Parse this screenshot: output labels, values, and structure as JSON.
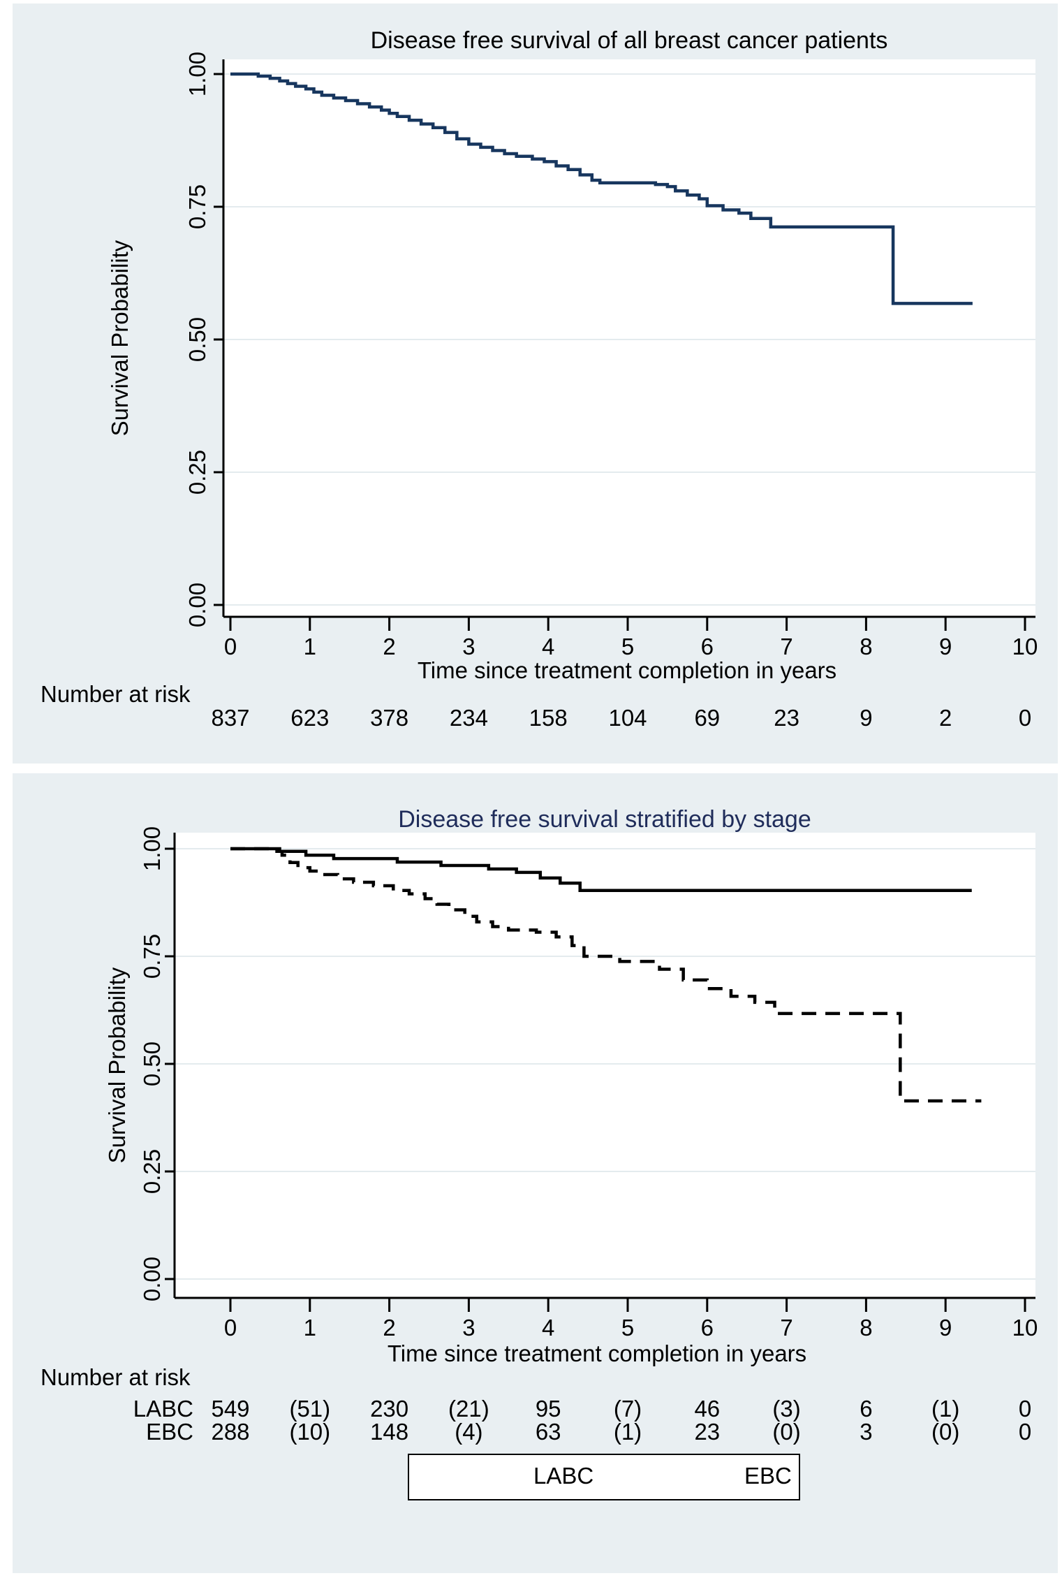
{
  "figure": {
    "background": "#ffffff",
    "panel_background": "#e9eff2",
    "plot_background": "#ffffff",
    "grid_color": "#e4ebee",
    "axis_color": "#000000",
    "navy_line_color": "#17365e",
    "black_line_color": "#000000"
  },
  "chart_data": [
    {
      "type": "line",
      "subtype": "kaplan-meier-step-curve",
      "title": "Disease free survival of all breast cancer patients",
      "title_color": "#1c1c1c",
      "xlabel": "Time since treatment completion in years",
      "ylabel": "Survival Probability",
      "xlim": [
        0,
        10
      ],
      "ylim": [
        0.0,
        1.0
      ],
      "x_ticks": [
        "0",
        "1",
        "2",
        "3",
        "4",
        "5",
        "6",
        "7",
        "8",
        "9",
        "10"
      ],
      "y_ticks": [
        "1.00",
        "0.75",
        "0.50",
        "0.25",
        "0.00"
      ],
      "grid": true,
      "series": [
        {
          "name": "All breast cancer patients",
          "style": "solid",
          "color": "#17365e",
          "end_time": 9.34,
          "steps": [
            [
              0,
              1.0
            ],
            [
              0.35,
              0.996
            ],
            [
              0.5,
              0.992
            ],
            [
              0.62,
              0.987
            ],
            [
              0.72,
              0.982
            ],
            [
              0.82,
              0.977
            ],
            [
              0.95,
              0.972
            ],
            [
              1.05,
              0.966
            ],
            [
              1.15,
              0.96
            ],
            [
              1.3,
              0.955
            ],
            [
              1.45,
              0.95
            ],
            [
              1.6,
              0.944
            ],
            [
              1.75,
              0.938
            ],
            [
              1.9,
              0.932
            ],
            [
              2.0,
              0.926
            ],
            [
              2.1,
              0.92
            ],
            [
              2.25,
              0.913
            ],
            [
              2.4,
              0.906
            ],
            [
              2.55,
              0.899
            ],
            [
              2.7,
              0.89
            ],
            [
              2.85,
              0.878
            ],
            [
              3.0,
              0.868
            ],
            [
              3.15,
              0.862
            ],
            [
              3.3,
              0.856
            ],
            [
              3.45,
              0.85
            ],
            [
              3.6,
              0.845
            ],
            [
              3.8,
              0.84
            ],
            [
              3.95,
              0.835
            ],
            [
              4.1,
              0.827
            ],
            [
              4.25,
              0.82
            ],
            [
              4.4,
              0.81
            ],
            [
              4.55,
              0.8
            ],
            [
              4.65,
              0.795
            ],
            [
              5.35,
              0.792
            ],
            [
              5.5,
              0.788
            ],
            [
              5.6,
              0.78
            ],
            [
              5.75,
              0.772
            ],
            [
              5.9,
              0.765
            ],
            [
              6.0,
              0.752
            ],
            [
              6.2,
              0.744
            ],
            [
              6.4,
              0.738
            ],
            [
              6.55,
              0.728
            ],
            [
              6.8,
              0.712
            ],
            [
              8.34,
              0.568
            ]
          ]
        }
      ],
      "number_at_risk": {
        "label": "Number at risk",
        "rows": [
          {
            "name": "",
            "values": [
              "837",
              "623",
              "378",
              "234",
              "158",
              "104",
              "69",
              "23",
              "9",
              "2",
              "0"
            ]
          }
        ]
      }
    },
    {
      "type": "line",
      "subtype": "kaplan-meier-step-curve",
      "title": "Disease free survival stratified by stage",
      "title_color": "#1f2c5a",
      "xlabel": "Time since treatment completion in years",
      "ylabel": "Survival Probability",
      "xlim": [
        0,
        10
      ],
      "ylim": [
        0.0,
        1.0
      ],
      "x_ticks": [
        "0",
        "1",
        "2",
        "3",
        "4",
        "5",
        "6",
        "7",
        "8",
        "9",
        "10"
      ],
      "y_ticks": [
        "1.00",
        "0.75",
        "0.50",
        "0.25",
        "0.00"
      ],
      "grid": true,
      "series": [
        {
          "name": "LABC",
          "style": "dashed",
          "color": "#000000",
          "end_time": 9.45,
          "steps": [
            [
              0,
              1.0
            ],
            [
              0.5,
              0.994
            ],
            [
              0.65,
              0.985
            ],
            [
              0.75,
              0.968
            ],
            [
              0.85,
              0.956
            ],
            [
              1.0,
              0.948
            ],
            [
              1.15,
              0.94
            ],
            [
              1.35,
              0.93
            ],
            [
              1.55,
              0.922
            ],
            [
              1.8,
              0.914
            ],
            [
              2.05,
              0.903
            ],
            [
              2.25,
              0.895
            ],
            [
              2.45,
              0.884
            ],
            [
              2.6,
              0.871
            ],
            [
              2.75,
              0.858
            ],
            [
              2.95,
              0.843
            ],
            [
              3.1,
              0.83
            ],
            [
              3.3,
              0.819
            ],
            [
              3.5,
              0.811
            ],
            [
              3.85,
              0.806
            ],
            [
              4.1,
              0.795
            ],
            [
              4.3,
              0.775
            ],
            [
              4.45,
              0.75
            ],
            [
              4.9,
              0.738
            ],
            [
              5.4,
              0.72
            ],
            [
              5.7,
              0.695
            ],
            [
              6.0,
              0.675
            ],
            [
              6.3,
              0.657
            ],
            [
              6.6,
              0.643
            ],
            [
              6.85,
              0.617
            ],
            [
              8.43,
              0.414
            ]
          ]
        },
        {
          "name": "EBC",
          "style": "solid",
          "color": "#000000",
          "end_time": 9.33,
          "steps": [
            [
              0,
              1.0
            ],
            [
              0.62,
              0.994
            ],
            [
              0.95,
              0.985
            ],
            [
              1.3,
              0.977
            ],
            [
              2.1,
              0.969
            ],
            [
              2.65,
              0.961
            ],
            [
              3.25,
              0.953
            ],
            [
              3.6,
              0.945
            ],
            [
              3.9,
              0.932
            ],
            [
              4.15,
              0.92
            ],
            [
              4.4,
              0.903
            ]
          ]
        }
      ],
      "number_at_risk": {
        "label": "Number at risk",
        "rows": [
          {
            "name": "LABC",
            "values": [
              "549",
              "(51)",
              "230",
              "(21)",
              "95",
              "(7)",
              "46",
              "(3)",
              "6",
              "(1)",
              "0"
            ]
          },
          {
            "name": "EBC",
            "values": [
              "288",
              "(10)",
              "148",
              "(4)",
              "63",
              "(1)",
              "23",
              "(0)",
              "3",
              "(0)",
              "0"
            ]
          }
        ]
      },
      "legend": {
        "position": "bottom-center",
        "entries": [
          {
            "label": "LABC",
            "style": "dashed"
          },
          {
            "label": "EBC",
            "style": "solid"
          }
        ]
      }
    }
  ]
}
